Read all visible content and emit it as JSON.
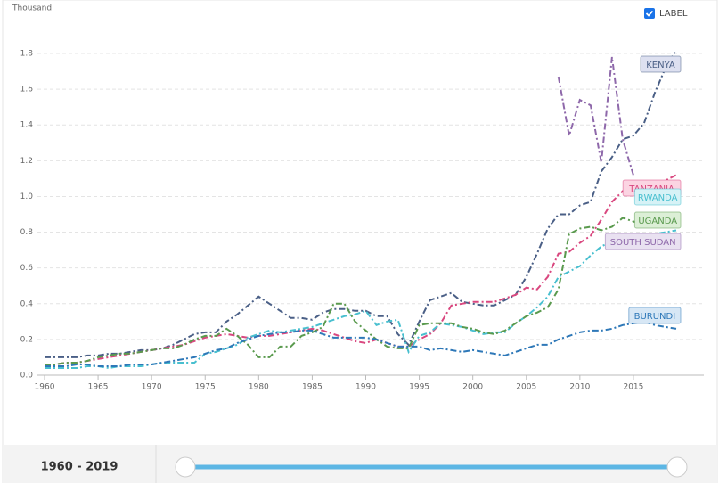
{
  "chart_data": {
    "type": "line",
    "y_unit": "Thousand",
    "label_toggle": "LABEL",
    "range_label": "1960 - 2019",
    "x": [
      1960,
      1961,
      1962,
      1963,
      1964,
      1965,
      1966,
      1967,
      1968,
      1969,
      1970,
      1971,
      1972,
      1973,
      1974,
      1975,
      1976,
      1977,
      1978,
      1979,
      1980,
      1981,
      1982,
      1983,
      1984,
      1985,
      1986,
      1987,
      1988,
      1989,
      1990,
      1991,
      1992,
      1993,
      1994,
      1995,
      1996,
      1997,
      1998,
      1999,
      2000,
      2001,
      2002,
      2003,
      2004,
      2005,
      2006,
      2007,
      2008,
      2009,
      2010,
      2011,
      2012,
      2013,
      2014,
      2015,
      2016,
      2017,
      2018,
      2019
    ],
    "xlim": [
      1960,
      2019
    ],
    "xticks": [
      1960,
      1965,
      1970,
      1975,
      1980,
      1985,
      1990,
      1995,
      2000,
      2005,
      2010,
      2015
    ],
    "ylim": [
      0,
      1.8
    ],
    "yticks": [
      {
        "value": 0,
        "label": "0.0"
      },
      0.2,
      0.4,
      0.6,
      0.8,
      {
        "value": 1,
        "label": "1.0"
      },
      1.2,
      1.4,
      1.6,
      1.8
    ],
    "grid": true,
    "series": [
      {
        "name": "KENYA",
        "color": "#4a5f86",
        "values": [
          0.1,
          0.1,
          0.1,
          0.1,
          0.11,
          0.11,
          0.12,
          0.12,
          0.13,
          0.14,
          0.14,
          0.15,
          0.17,
          0.2,
          0.23,
          0.24,
          0.24,
          0.3,
          0.34,
          0.39,
          0.44,
          0.4,
          0.36,
          0.32,
          0.32,
          0.31,
          0.35,
          0.37,
          0.37,
          0.36,
          0.36,
          0.33,
          0.33,
          0.23,
          0.17,
          0.3,
          0.42,
          0.44,
          0.46,
          0.41,
          0.4,
          0.39,
          0.39,
          0.42,
          0.45,
          0.55,
          0.68,
          0.82,
          0.9,
          0.9,
          0.95,
          0.97,
          1.14,
          1.22,
          1.32,
          1.34,
          1.41,
          1.58,
          1.72,
          1.82
        ]
      },
      {
        "name": "TANZANIA",
        "color": "#d9477f",
        "values": [
          0.06,
          0.06,
          0.07,
          0.07,
          0.08,
          0.09,
          0.1,
          0.11,
          0.12,
          0.13,
          0.14,
          0.15,
          0.16,
          0.17,
          0.19,
          0.21,
          0.22,
          0.23,
          0.22,
          0.21,
          0.22,
          0.22,
          0.23,
          0.24,
          0.25,
          0.26,
          0.25,
          0.23,
          0.21,
          0.19,
          0.18,
          0.2,
          0.18,
          0.16,
          0.16,
          0.2,
          0.23,
          0.29,
          0.39,
          0.4,
          0.41,
          0.41,
          0.41,
          0.43,
          0.45,
          0.49,
          0.48,
          0.55,
          0.68,
          0.69,
          0.74,
          0.78,
          0.87,
          0.97,
          1.03,
          1.02,
          1.05,
          1.06,
          1.09,
          1.12
        ]
      },
      {
        "name": "RWANDA",
        "color": "#48bfcf",
        "values": [
          0.04,
          0.04,
          0.04,
          0.04,
          0.05,
          0.05,
          0.04,
          0.05,
          0.05,
          0.05,
          0.06,
          0.07,
          0.07,
          0.07,
          0.07,
          0.12,
          0.13,
          0.15,
          0.17,
          0.21,
          0.23,
          0.25,
          0.24,
          0.25,
          0.26,
          0.27,
          0.29,
          0.31,
          0.33,
          0.34,
          0.36,
          0.28,
          0.3,
          0.31,
          0.13,
          0.22,
          0.24,
          0.29,
          0.28,
          0.27,
          0.25,
          0.23,
          0.24,
          0.24,
          0.29,
          0.33,
          0.38,
          0.44,
          0.55,
          0.58,
          0.61,
          0.67,
          0.72,
          0.75,
          0.76,
          0.77,
          0.78,
          0.79,
          0.8,
          0.81
        ]
      },
      {
        "name": "UGANDA",
        "color": "#5a9a4e",
        "values": [
          0.06,
          0.06,
          0.07,
          0.07,
          0.08,
          0.1,
          0.11,
          0.12,
          0.12,
          0.13,
          0.14,
          0.15,
          0.15,
          0.17,
          0.2,
          0.22,
          0.22,
          0.26,
          0.22,
          0.17,
          0.1,
          0.1,
          0.16,
          0.16,
          0.22,
          0.24,
          0.27,
          0.4,
          0.4,
          0.3,
          0.25,
          0.2,
          0.16,
          0.15,
          0.15,
          0.28,
          0.29,
          0.29,
          0.29,
          0.27,
          0.26,
          0.24,
          0.23,
          0.25,
          0.29,
          0.33,
          0.35,
          0.38,
          0.48,
          0.79,
          0.82,
          0.83,
          0.81,
          0.83,
          0.88,
          0.86,
          0.84,
          0.85,
          0.86,
          0.88
        ]
      },
      {
        "name": "SOUTH SUDAN",
        "color": "#8e68aa",
        "values": [
          null,
          null,
          null,
          null,
          null,
          null,
          null,
          null,
          null,
          null,
          null,
          null,
          null,
          null,
          null,
          null,
          null,
          null,
          null,
          null,
          null,
          null,
          null,
          null,
          null,
          null,
          null,
          null,
          null,
          null,
          null,
          null,
          null,
          null,
          null,
          null,
          null,
          null,
          null,
          null,
          null,
          null,
          null,
          null,
          null,
          null,
          null,
          null,
          1.67,
          1.34,
          1.54,
          1.51,
          1.19,
          1.78,
          1.32,
          1.12,
          null,
          null,
          null,
          null
        ]
      },
      {
        "name": "BURUNDI",
        "color": "#2e78b8",
        "values": [
          0.05,
          0.05,
          0.05,
          0.06,
          0.06,
          0.05,
          0.05,
          0.05,
          0.06,
          0.06,
          0.06,
          0.07,
          0.08,
          0.09,
          0.1,
          0.12,
          0.14,
          0.15,
          0.18,
          0.2,
          0.22,
          0.23,
          0.24,
          0.24,
          0.25,
          0.25,
          0.23,
          0.21,
          0.21,
          0.21,
          0.21,
          0.2,
          0.18,
          0.16,
          0.16,
          0.16,
          0.14,
          0.15,
          0.14,
          0.13,
          0.14,
          0.13,
          0.12,
          0.11,
          0.13,
          0.15,
          0.17,
          0.17,
          0.2,
          0.22,
          0.24,
          0.25,
          0.25,
          0.26,
          0.28,
          0.29,
          0.3,
          0.28,
          0.27,
          0.26
        ]
      }
    ]
  }
}
